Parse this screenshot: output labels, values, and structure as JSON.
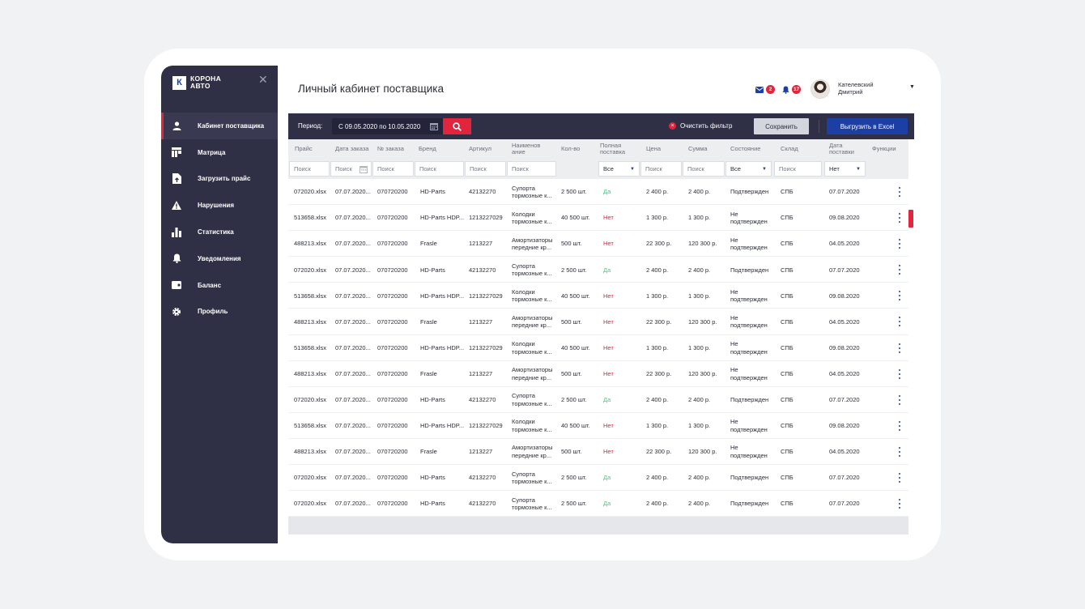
{
  "sidebar": {
    "logo_mark": "К",
    "logo_line1": "КОРОНА",
    "logo_line2": "АВТО",
    "close_symbol": "✕",
    "items": [
      {
        "label": "Кабинет поставщика",
        "icon": "user-icon"
      },
      {
        "label": "Матрица",
        "icon": "matrix-icon"
      },
      {
        "label": "Загрузить прайс",
        "icon": "upload-file-icon"
      },
      {
        "label": "Нарушения",
        "icon": "warning-icon"
      },
      {
        "label": "Статистика",
        "icon": "stats-icon"
      },
      {
        "label": "Уведомления",
        "icon": "bell-icon"
      },
      {
        "label": "Баланс",
        "icon": "wallet-icon"
      },
      {
        "label": "Профиль",
        "icon": "gear-icon"
      }
    ]
  },
  "header": {
    "title": "Личный кабинет поставщика",
    "mail_count": "2",
    "notif_count": "17",
    "user_line1": "Кателевский",
    "user_line2": "Дмитрий"
  },
  "toolbar": {
    "period_label": "Период:",
    "period_value": "С 09.05.2020 по 10.05.2020",
    "clear_filter": "Очистить фильтр",
    "save": "Сохранить",
    "export": "Выгрузить в Excel"
  },
  "table": {
    "headers": {
      "price": "Прайс",
      "order_date": "Дата заказа",
      "order_no": "№ заказа",
      "brand": "Бренд",
      "article": "Артикул",
      "name": "Наименов ание",
      "qty": "Кол-во",
      "full": "Полная поставка",
      "unit_price": "Цена",
      "sum": "Сумма",
      "state": "Состояние",
      "warehouse": "Склад",
      "delivery_date": "Дата поставки",
      "functions": "Функции"
    },
    "filters": {
      "search_placeholder": "Поиск",
      "full_select": "Все",
      "state_select": "Все",
      "delivery_select": "Нет"
    },
    "rows": [
      {
        "price": "072020.xlsx",
        "order_date": "07.07.2020...",
        "order_no": "070720200",
        "brand": "HD-Parts",
        "article": "42132270",
        "name": "Супорта тормозные к...",
        "qty": "2 500 шт.",
        "full": "Да",
        "unit_price": "2 400 р.",
        "sum": "2 400 р.",
        "state": "Подтвержден",
        "warehouse": "СПБ",
        "delivery_date": "07.07.2020"
      },
      {
        "price": "513658.xlsx",
        "order_date": "07.07.2020...",
        "order_no": "070720200",
        "brand": "HD-Parts HDP...",
        "article": "1213227029",
        "name": "Колодки тормозные к...",
        "qty": "40 500 шт.",
        "full": "Нет",
        "unit_price": "1 300 р.",
        "sum": "1 300 р.",
        "state": "Не подтвержден",
        "warehouse": "СПБ",
        "delivery_date": "09.08.2020"
      },
      {
        "price": "488213.xlsx",
        "order_date": "07.07.2020...",
        "order_no": "070720200",
        "brand": "Frasle",
        "article": "1213227",
        "name": "Амортизаторы передние кр...",
        "qty": "500 шт.",
        "full": "Нет",
        "unit_price": "22 300 р.",
        "sum": "120 300 р.",
        "state": "Не подтвержден",
        "warehouse": "СПБ",
        "delivery_date": "04.05.2020"
      },
      {
        "price": "072020.xlsx",
        "order_date": "07.07.2020...",
        "order_no": "070720200",
        "brand": "HD-Parts",
        "article": "42132270",
        "name": "Супорта тормозные к...",
        "qty": "2 500 шт.",
        "full": "Да",
        "unit_price": "2 400 р.",
        "sum": "2 400 р.",
        "state": "Подтвержден",
        "warehouse": "СПБ",
        "delivery_date": "07.07.2020"
      },
      {
        "price": "513658.xlsx",
        "order_date": "07.07.2020...",
        "order_no": "070720200",
        "brand": "HD-Parts HDP...",
        "article": "1213227029",
        "name": "Колодки тормозные к...",
        "qty": "40 500 шт.",
        "full": "Нет",
        "unit_price": "1 300 р.",
        "sum": "1 300 р.",
        "state": "Не подтвержден",
        "warehouse": "СПБ",
        "delivery_date": "09.08.2020"
      },
      {
        "price": "488213.xlsx",
        "order_date": "07.07.2020...",
        "order_no": "070720200",
        "brand": "Frasle",
        "article": "1213227",
        "name": "Амортизаторы передние кр...",
        "qty": "500 шт.",
        "full": "Нет",
        "unit_price": "22 300 р.",
        "sum": "120 300 р.",
        "state": "Не подтвержден",
        "warehouse": "СПБ",
        "delivery_date": "04.05.2020"
      },
      {
        "price": "513658.xlsx",
        "order_date": "07.07.2020...",
        "order_no": "070720200",
        "brand": "HD-Parts HDP...",
        "article": "1213227029",
        "name": "Колодки тормозные к...",
        "qty": "40 500 шт.",
        "full": "Нет",
        "unit_price": "1 300 р.",
        "sum": "1 300 р.",
        "state": "Не подтвержден",
        "warehouse": "СПБ",
        "delivery_date": "09.08.2020"
      },
      {
        "price": "488213.xlsx",
        "order_date": "07.07.2020...",
        "order_no": "070720200",
        "brand": "Frasle",
        "article": "1213227",
        "name": "Амортизаторы передние кр...",
        "qty": "500 шт.",
        "full": "Нет",
        "unit_price": "22 300 р.",
        "sum": "120 300 р.",
        "state": "Не подтвержден",
        "warehouse": "СПБ",
        "delivery_date": "04.05.2020"
      },
      {
        "price": "072020.xlsx",
        "order_date": "07.07.2020...",
        "order_no": "070720200",
        "brand": "HD-Parts",
        "article": "42132270",
        "name": "Супорта тормозные к...",
        "qty": "2 500 шт.",
        "full": "Да",
        "unit_price": "2 400 р.",
        "sum": "2 400 р.",
        "state": "Подтвержден",
        "warehouse": "СПБ",
        "delivery_date": "07.07.2020"
      },
      {
        "price": "513658.xlsx",
        "order_date": "07.07.2020...",
        "order_no": "070720200",
        "brand": "HD-Parts HDP...",
        "article": "1213227029",
        "name": "Колодки тормозные к...",
        "qty": "40 500 шт.",
        "full": "Нет",
        "unit_price": "1 300 р.",
        "sum": "1 300 р.",
        "state": "Не подтвержден",
        "warehouse": "СПБ",
        "delivery_date": "09.08.2020"
      },
      {
        "price": "488213.xlsx",
        "order_date": "07.07.2020...",
        "order_no": "070720200",
        "brand": "Frasle",
        "article": "1213227",
        "name": "Амортизаторы передние кр...",
        "qty": "500 шт.",
        "full": "Нет",
        "unit_price": "22 300 р.",
        "sum": "120 300 р.",
        "state": "Не подтвержден",
        "warehouse": "СПБ",
        "delivery_date": "04.05.2020"
      },
      {
        "price": "072020.xlsx",
        "order_date": "07.07.2020...",
        "order_no": "070720200",
        "brand": "HD-Parts",
        "article": "42132270",
        "name": "Супорта тормозные к...",
        "qty": "2 500 шт.",
        "full": "Да",
        "unit_price": "2 400 р.",
        "sum": "2 400 р.",
        "state": "Подтвержден",
        "warehouse": "СПБ",
        "delivery_date": "07.07.2020"
      },
      {
        "price": "072020.xlsx",
        "order_date": "07.07.2020...",
        "order_no": "070720200",
        "brand": "HD-Parts",
        "article": "42132270",
        "name": "Супорта тормозные к...",
        "qty": "2 500 шт.",
        "full": "Да",
        "unit_price": "2 400 р.",
        "sum": "2 400 р.",
        "state": "Подтвержден",
        "warehouse": "СПБ",
        "delivery_date": "07.07.2020"
      }
    ]
  },
  "colors": {
    "sidebar_bg": "#2f3045",
    "accent_red": "#e0253c",
    "primary_blue": "#1c3fa6",
    "yes_green": "#4cc48a"
  }
}
